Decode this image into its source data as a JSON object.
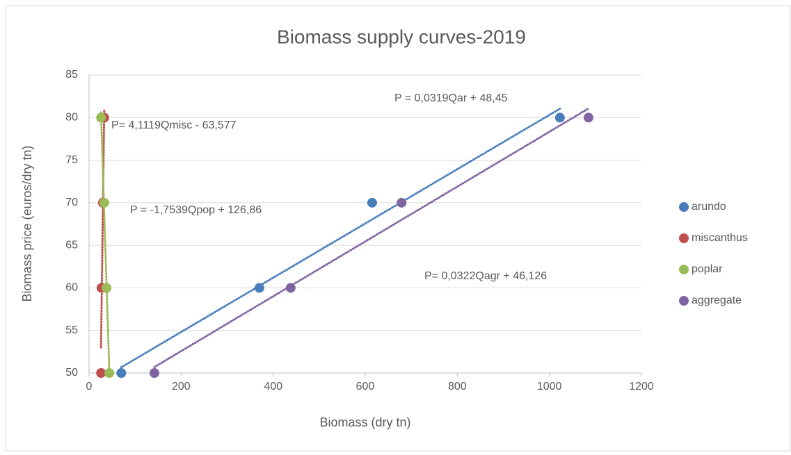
{
  "chart_data": {
    "type": "scatter",
    "title": "Biomass supply curves-2019",
    "x_label": "Biomass (dry tn)",
    "y_label": "Biomass price (euros/dry tn)",
    "xlim": [
      0,
      1200
    ],
    "xticks": [
      0,
      200,
      400,
      600,
      800,
      1000,
      1200
    ],
    "ylim": [
      50,
      85
    ],
    "yticks": [
      50,
      55,
      60,
      65,
      70,
      75,
      80,
      85
    ],
    "grid": true,
    "legend": "right",
    "trendline": "linear",
    "series": [
      {
        "name": "arundo",
        "color": "#4a7ebb",
        "x": [
          70,
          370,
          615,
          1023
        ],
        "values": [
          50,
          60,
          70,
          80
        ]
      },
      {
        "name": "miscanthus",
        "color": "#c0504d",
        "x": [
          26,
          27,
          30,
          33
        ],
        "values": [
          50,
          60,
          70,
          80
        ]
      },
      {
        "name": "poplar",
        "color": "#9bbb59",
        "x": [
          44,
          38,
          33,
          26
        ],
        "values": [
          50,
          60,
          70,
          80
        ]
      },
      {
        "name": "aggregate",
        "color": "#8064a2",
        "x": [
          142,
          438,
          679,
          1085
        ],
        "values": [
          50,
          60,
          70,
          80
        ]
      }
    ],
    "annotations": [
      "P = 0,0319Qar + 48,45",
      "P= 4,1119Qmisc - 63,577",
      "P = -1,7539Qpop + 126,86",
      "P= 0,0322Qagr + 46,126"
    ]
  }
}
